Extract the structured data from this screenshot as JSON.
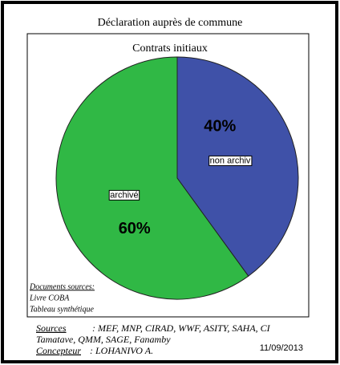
{
  "chart_data": {
    "type": "pie",
    "title": "Déclaration auprès de commune",
    "subtitle": "Contrats initiaux",
    "categories": [
      "non archiv",
      "archivé"
    ],
    "values": [
      40,
      60
    ],
    "value_labels": [
      "40%",
      "60%"
    ],
    "colors": [
      "#3f51a8",
      "#30b845"
    ]
  },
  "sources_box": {
    "heading": "Documents sources:",
    "lines": [
      "Livre COBA",
      "Tableau synthétique"
    ]
  },
  "footer": {
    "sources_label": "Sources",
    "sources_lines": [
      ": MEF, MNP, CIRAD, WWF, ASITY, SAHA, CI",
      "Tamatave, QMM, SAGE, Fanamby"
    ],
    "concepteur_label": "Concepteur",
    "concepteur_text": ": LOHANIVO A.",
    "date": "11/09/2013"
  }
}
